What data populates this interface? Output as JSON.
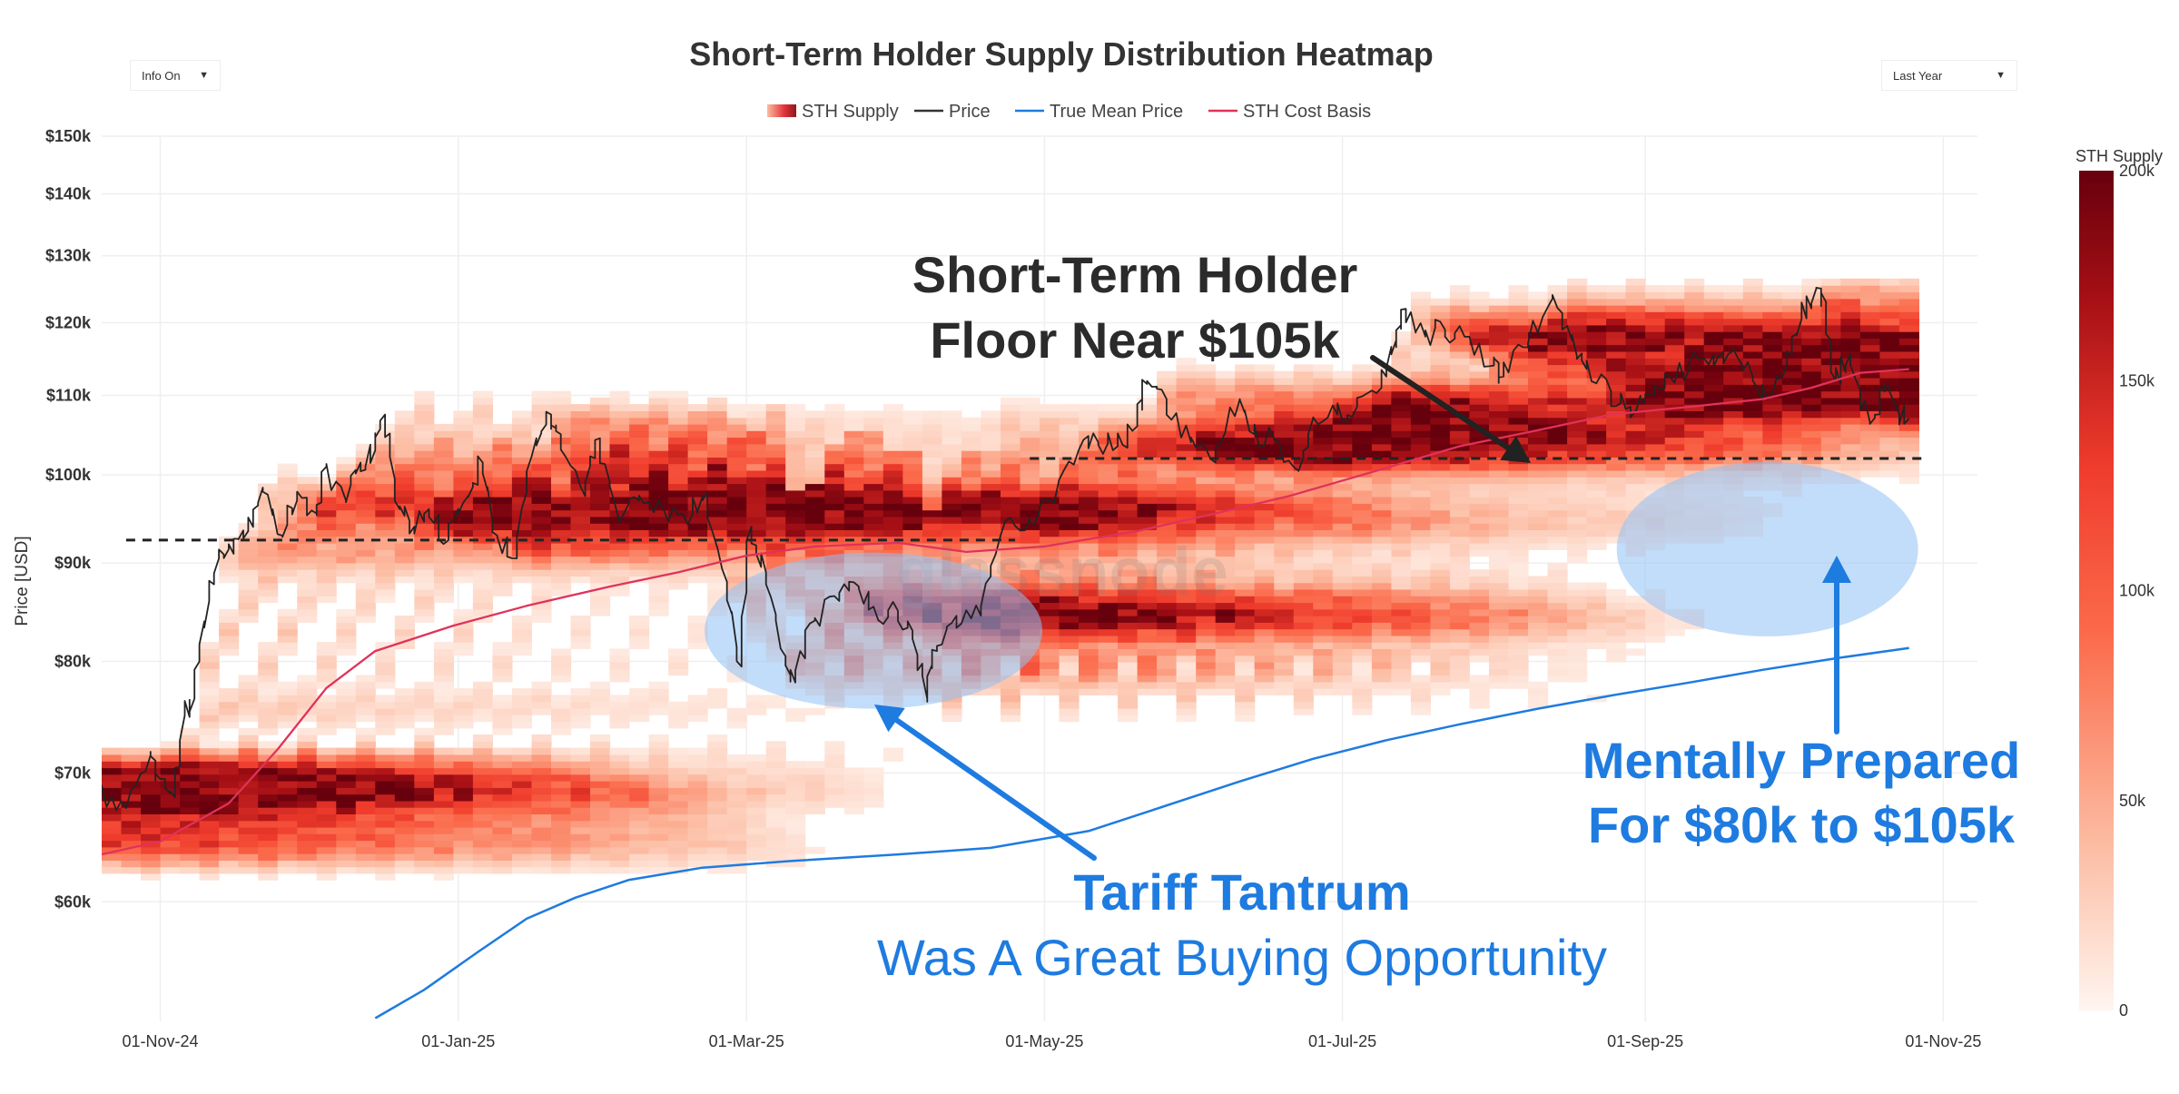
{
  "controls": {
    "info_toggle": {
      "label": "Info On",
      "arrow": "▼"
    },
    "range_select": {
      "label": "Last Year",
      "arrow": "▼"
    }
  },
  "chart_data": {
    "type": "heatmap",
    "title": "Short-Term Holder Supply Distribution Heatmap",
    "ylabel": "Price [USD]",
    "xlabel": "",
    "y_scale": "log",
    "ylim": [
      52000,
      150000
    ],
    "xlim": [
      "2024-10-20",
      "2025-11-08"
    ],
    "grid": true,
    "legend_position": "top-center",
    "legend": [
      {
        "name": "STH Supply",
        "style": "gradient",
        "color": "#c0392b"
      },
      {
        "name": "Price",
        "style": "line",
        "color": "#333333"
      },
      {
        "name": "True Mean Price",
        "style": "line",
        "color": "#1e7be0"
      },
      {
        "name": "STH Cost Basis",
        "style": "line",
        "color": "#e0325a"
      }
    ],
    "y_ticks": [
      {
        "value": 60000,
        "label": "$60k"
      },
      {
        "value": 70000,
        "label": "$70k"
      },
      {
        "value": 80000,
        "label": "$80k"
      },
      {
        "value": 90000,
        "label": "$90k"
      },
      {
        "value": 100000,
        "label": "$100k"
      },
      {
        "value": 110000,
        "label": "$110k"
      },
      {
        "value": 120000,
        "label": "$120k"
      },
      {
        "value": 130000,
        "label": "$130k"
      },
      {
        "value": 140000,
        "label": "$140k"
      },
      {
        "value": 150000,
        "label": "$150k"
      }
    ],
    "x_ticks": [
      {
        "date": "2024-11-01",
        "label": "01-Nov-24"
      },
      {
        "date": "2025-01-01",
        "label": "01-Jan-25"
      },
      {
        "date": "2025-03-01",
        "label": "01-Mar-25"
      },
      {
        "date": "2025-05-01",
        "label": "01-May-25"
      },
      {
        "date": "2025-07-01",
        "label": "01-Jul-25"
      },
      {
        "date": "2025-09-01",
        "label": "01-Sep-25"
      },
      {
        "date": "2025-11-01",
        "label": "01-Nov-25"
      }
    ],
    "colorbar": {
      "title": "STH Supply",
      "min": 0,
      "max": 200000,
      "ticks": [
        {
          "value": 0,
          "label": "0"
        },
        {
          "value": 50000,
          "label": "50k"
        },
        {
          "value": 100000,
          "label": "100k"
        },
        {
          "value": 150000,
          "label": "150k"
        },
        {
          "value": 200000,
          "label": "200k"
        }
      ],
      "colors": [
        "#fff5f0",
        "#fcbba1",
        "#fb6a4a",
        "#ef3b2c",
        "#a50f15",
        "#67000d"
      ]
    },
    "series": [
      {
        "name": "Price",
        "color": "#222222",
        "points": [
          [
            "2024-10-20",
            68500
          ],
          [
            "2024-10-25",
            67200
          ],
          [
            "2024-10-30",
            71500
          ],
          [
            "2024-11-01",
            69500
          ],
          [
            "2024-11-04",
            68000
          ],
          [
            "2024-11-06",
            75000
          ],
          [
            "2024-11-08",
            76500
          ],
          [
            "2024-11-11",
            86000
          ],
          [
            "2024-11-13",
            90500
          ],
          [
            "2024-11-16",
            91000
          ],
          [
            "2024-11-19",
            93500
          ],
          [
            "2024-11-22",
            98500
          ],
          [
            "2024-11-26",
            93000
          ],
          [
            "2024-11-29",
            97000
          ],
          [
            "2024-12-03",
            95500
          ],
          [
            "2024-12-05",
            101000
          ],
          [
            "2024-12-09",
            97000
          ],
          [
            "2024-12-12",
            101500
          ],
          [
            "2024-12-15",
            103000
          ],
          [
            "2024-12-17",
            107500
          ],
          [
            "2024-12-20",
            96000
          ],
          [
            "2024-12-23",
            94000
          ],
          [
            "2024-12-26",
            96000
          ],
          [
            "2024-12-30",
            92500
          ],
          [
            "2025-01-03",
            97500
          ],
          [
            "2025-01-06",
            101500
          ],
          [
            "2025-01-09",
            93000
          ],
          [
            "2025-01-13",
            90500
          ],
          [
            "2025-01-17",
            104500
          ],
          [
            "2025-01-20",
            107500
          ],
          [
            "2025-01-22",
            105000
          ],
          [
            "2025-01-27",
            97500
          ],
          [
            "2025-01-30",
            104500
          ],
          [
            "2025-02-03",
            94500
          ],
          [
            "2025-02-07",
            97000
          ],
          [
            "2025-02-12",
            96000
          ],
          [
            "2025-02-18",
            95500
          ],
          [
            "2025-02-21",
            98000
          ],
          [
            "2025-02-25",
            88000
          ],
          [
            "2025-02-28",
            79500
          ],
          [
            "2025-03-02",
            94000
          ],
          [
            "2025-03-05",
            89000
          ],
          [
            "2025-03-09",
            80500
          ],
          [
            "2025-03-11",
            78000
          ],
          [
            "2025-03-15",
            84000
          ],
          [
            "2025-03-20",
            86000
          ],
          [
            "2025-03-24",
            87500
          ],
          [
            "2025-03-28",
            84000
          ],
          [
            "2025-04-01",
            85000
          ],
          [
            "2025-04-04",
            83000
          ],
          [
            "2025-04-07",
            76500
          ],
          [
            "2025-04-09",
            81000
          ],
          [
            "2025-04-13",
            84500
          ],
          [
            "2025-04-18",
            84500
          ],
          [
            "2025-04-22",
            93000
          ],
          [
            "2025-04-28",
            95000
          ],
          [
            "2025-05-02",
            97000
          ],
          [
            "2025-05-08",
            103000
          ],
          [
            "2025-05-12",
            104000
          ],
          [
            "2025-05-16",
            103500
          ],
          [
            "2025-05-20",
            106000
          ],
          [
            "2025-05-22",
            111500
          ],
          [
            "2025-05-26",
            109500
          ],
          [
            "2025-05-31",
            104000
          ],
          [
            "2025-06-05",
            101500
          ],
          [
            "2025-06-10",
            109500
          ],
          [
            "2025-06-13",
            105000
          ],
          [
            "2025-06-17",
            104500
          ],
          [
            "2025-06-22",
            100500
          ],
          [
            "2025-06-25",
            107000
          ],
          [
            "2025-06-30",
            107500
          ],
          [
            "2025-07-04",
            108500
          ],
          [
            "2025-07-09",
            111000
          ],
          [
            "2025-07-12",
            117500
          ],
          [
            "2025-07-14",
            122000
          ],
          [
            "2025-07-18",
            118000
          ],
          [
            "2025-07-22",
            119000
          ],
          [
            "2025-07-26",
            118000
          ],
          [
            "2025-08-01",
            114000
          ],
          [
            "2025-08-03",
            112500
          ],
          [
            "2025-08-08",
            116500
          ],
          [
            "2025-08-13",
            123500
          ],
          [
            "2025-08-17",
            117500
          ],
          [
            "2025-08-20",
            113500
          ],
          [
            "2025-08-25",
            110500
          ],
          [
            "2025-08-29",
            108500
          ],
          [
            "2025-09-01",
            109000
          ],
          [
            "2025-09-05",
            111000
          ],
          [
            "2025-09-10",
            113500
          ],
          [
            "2025-09-15",
            115500
          ],
          [
            "2025-09-19",
            116000
          ],
          [
            "2025-09-23",
            112500
          ],
          [
            "2025-09-26",
            109500
          ],
          [
            "2025-09-30",
            114000
          ],
          [
            "2025-10-03",
            120500
          ],
          [
            "2025-10-06",
            125000
          ],
          [
            "2025-10-08",
            123000
          ],
          [
            "2025-10-10",
            112000
          ],
          [
            "2025-10-13",
            115500
          ],
          [
            "2025-10-17",
            106500
          ],
          [
            "2025-10-20",
            110500
          ],
          [
            "2025-10-23",
            107500
          ],
          [
            "2025-10-25",
            107000
          ]
        ]
      },
      {
        "name": "True Mean Price",
        "color": "#1e7be0",
        "points": [
          [
            "2024-12-15",
            52200
          ],
          [
            "2024-12-25",
            54000
          ],
          [
            "2025-01-05",
            56500
          ],
          [
            "2025-01-15",
            58800
          ],
          [
            "2025-01-25",
            60300
          ],
          [
            "2025-02-05",
            61600
          ],
          [
            "2025-02-20",
            62500
          ],
          [
            "2025-03-10",
            63000
          ],
          [
            "2025-04-01",
            63500
          ],
          [
            "2025-04-20",
            64000
          ],
          [
            "2025-05-10",
            65300
          ],
          [
            "2025-05-25",
            67200
          ],
          [
            "2025-06-10",
            69300
          ],
          [
            "2025-06-25",
            71200
          ],
          [
            "2025-07-10",
            72800
          ],
          [
            "2025-07-25",
            74200
          ],
          [
            "2025-08-10",
            75600
          ],
          [
            "2025-08-25",
            76800
          ],
          [
            "2025-09-10",
            78000
          ],
          [
            "2025-09-25",
            79200
          ],
          [
            "2025-10-10",
            80300
          ],
          [
            "2025-10-25",
            81300
          ]
        ]
      },
      {
        "name": "STH Cost Basis",
        "color": "#e0325a",
        "points": [
          [
            "2024-10-20",
            63500
          ],
          [
            "2024-11-01",
            64500
          ],
          [
            "2024-11-15",
            67500
          ],
          [
            "2024-11-25",
            72000
          ],
          [
            "2024-12-05",
            77500
          ],
          [
            "2024-12-15",
            81000
          ],
          [
            "2024-12-31",
            83500
          ],
          [
            "2025-01-15",
            85500
          ],
          [
            "2025-02-01",
            87500
          ],
          [
            "2025-02-15",
            89000
          ],
          [
            "2025-03-01",
            90800
          ],
          [
            "2025-03-15",
            91800
          ],
          [
            "2025-04-01",
            92200
          ],
          [
            "2025-04-15",
            91200
          ],
          [
            "2025-05-01",
            91800
          ],
          [
            "2025-05-20",
            93500
          ],
          [
            "2025-06-05",
            95500
          ],
          [
            "2025-06-20",
            97500
          ],
          [
            "2025-07-05",
            100000
          ],
          [
            "2025-07-25",
            103500
          ],
          [
            "2025-08-10",
            105500
          ],
          [
            "2025-08-25",
            107500
          ],
          [
            "2025-09-10",
            108500
          ],
          [
            "2025-09-25",
            109500
          ],
          [
            "2025-10-05",
            111000
          ],
          [
            "2025-10-15",
            113000
          ],
          [
            "2025-10-25",
            113500
          ]
        ]
      }
    ],
    "reference_lines": [
      {
        "value": 92500,
        "from": "2024-10-25",
        "to": "2025-04-25",
        "style": "dashed",
        "color": "#222222"
      },
      {
        "value": 102000,
        "from": "2025-04-28",
        "to": "2025-10-28",
        "style": "dashed",
        "color": "#222222"
      }
    ],
    "annotations": [
      {
        "id": "floor_line1",
        "text": "Short-Term Holder",
        "color": "#2b2b2b"
      },
      {
        "id": "floor_line2",
        "text": "Floor Near $105k",
        "color": "#2b2b2b"
      },
      {
        "id": "tariff_title",
        "text": "Tariff Tantrum",
        "color": "#1e7be0"
      },
      {
        "id": "tariff_sub",
        "text": "Was A Great Buying Opportunity",
        "color": "#1e7be0"
      },
      {
        "id": "prepared_line1",
        "text": "Mentally Prepared",
        "color": "#1e7be0"
      },
      {
        "id": "prepared_line2",
        "text": "For $80k to $105k",
        "color": "#1e7be0"
      }
    ],
    "highlight_regions": [
      {
        "name": "tariff-tantrum-zone",
        "x_center": "2025-03-27",
        "y_center": 83000
      },
      {
        "name": "prepared-zone",
        "x_center": "2025-09-26",
        "y_center": 91500
      }
    ],
    "watermark": "glassnode"
  }
}
